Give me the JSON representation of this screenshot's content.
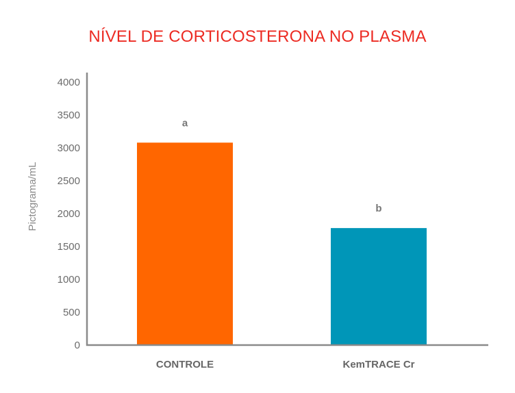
{
  "chart_data": {
    "type": "bar",
    "title": "NÍVEL DE CORTICOSTERONA NO PLASMA",
    "xlabel": "",
    "ylabel": "Pictograma/mL",
    "categories": [
      "CONTROLE",
      "KemTRACE Cr"
    ],
    "values": [
      3080,
      1780
    ],
    "data_labels": [
      "a",
      "b"
    ],
    "colors": [
      "#ff6600",
      "#0096b8"
    ],
    "ylim": [
      0,
      4000
    ],
    "yticks": [
      0,
      500,
      1000,
      1500,
      2000,
      2500,
      3000,
      3500,
      4000
    ],
    "grid": false,
    "legend": "none",
    "title_color": "#ec2b23"
  }
}
